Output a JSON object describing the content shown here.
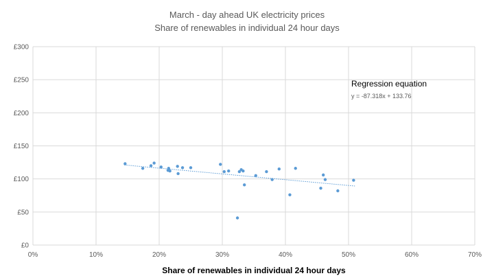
{
  "chart_data": {
    "type": "scatter",
    "title": "March - day ahead UK electricity prices",
    "subtitle": "Share of renewables in individual 24 hour days",
    "xlabel": "Share of renewables in individual 24 hour days",
    "ylabel": "",
    "xlim": [
      0,
      0.7
    ],
    "ylim": [
      0,
      300
    ],
    "x_ticks": [
      0,
      0.1,
      0.2,
      0.3,
      0.4,
      0.5,
      0.6,
      0.7
    ],
    "x_tick_labels": [
      "0%",
      "10%",
      "20%",
      "30%",
      "40%",
      "50%",
      "60%",
      "70%"
    ],
    "y_ticks": [
      0,
      50,
      100,
      150,
      200,
      250,
      300
    ],
    "y_tick_labels": [
      "£0",
      "£50",
      "£100",
      "£150",
      "£200",
      "£250",
      "£300"
    ],
    "grid": {
      "x": true,
      "y": true
    },
    "colors": {
      "points": "#5b9bd5",
      "trendline": "#5b9bd5",
      "grid": "#d9d9d9"
    },
    "annotations": {
      "regression_title": "Regression equation",
      "regression_equation": "y = -87.318x + 133.76"
    },
    "trendline": {
      "slope": -87.318,
      "intercept": 133.76,
      "x_range": [
        0.145,
        0.51
      ]
    },
    "points": [
      {
        "x": 0.146,
        "y": 123
      },
      {
        "x": 0.174,
        "y": 116
      },
      {
        "x": 0.187,
        "y": 120
      },
      {
        "x": 0.192,
        "y": 124
      },
      {
        "x": 0.203,
        "y": 118
      },
      {
        "x": 0.214,
        "y": 113
      },
      {
        "x": 0.215,
        "y": 116
      },
      {
        "x": 0.217,
        "y": 112
      },
      {
        "x": 0.229,
        "y": 119
      },
      {
        "x": 0.23,
        "y": 108
      },
      {
        "x": 0.237,
        "y": 117
      },
      {
        "x": 0.25,
        "y": 117
      },
      {
        "x": 0.297,
        "y": 122
      },
      {
        "x": 0.303,
        "y": 111
      },
      {
        "x": 0.31,
        "y": 112
      },
      {
        "x": 0.324,
        "y": 41
      },
      {
        "x": 0.327,
        "y": 111
      },
      {
        "x": 0.33,
        "y": 114
      },
      {
        "x": 0.333,
        "y": 112
      },
      {
        "x": 0.335,
        "y": 91
      },
      {
        "x": 0.353,
        "y": 105
      },
      {
        "x": 0.37,
        "y": 111
      },
      {
        "x": 0.379,
        "y": 99
      },
      {
        "x": 0.39,
        "y": 115
      },
      {
        "x": 0.407,
        "y": 76
      },
      {
        "x": 0.416,
        "y": 116
      },
      {
        "x": 0.456,
        "y": 86
      },
      {
        "x": 0.46,
        "y": 106
      },
      {
        "x": 0.463,
        "y": 99
      },
      {
        "x": 0.483,
        "y": 82
      },
      {
        "x": 0.508,
        "y": 98
      }
    ]
  }
}
